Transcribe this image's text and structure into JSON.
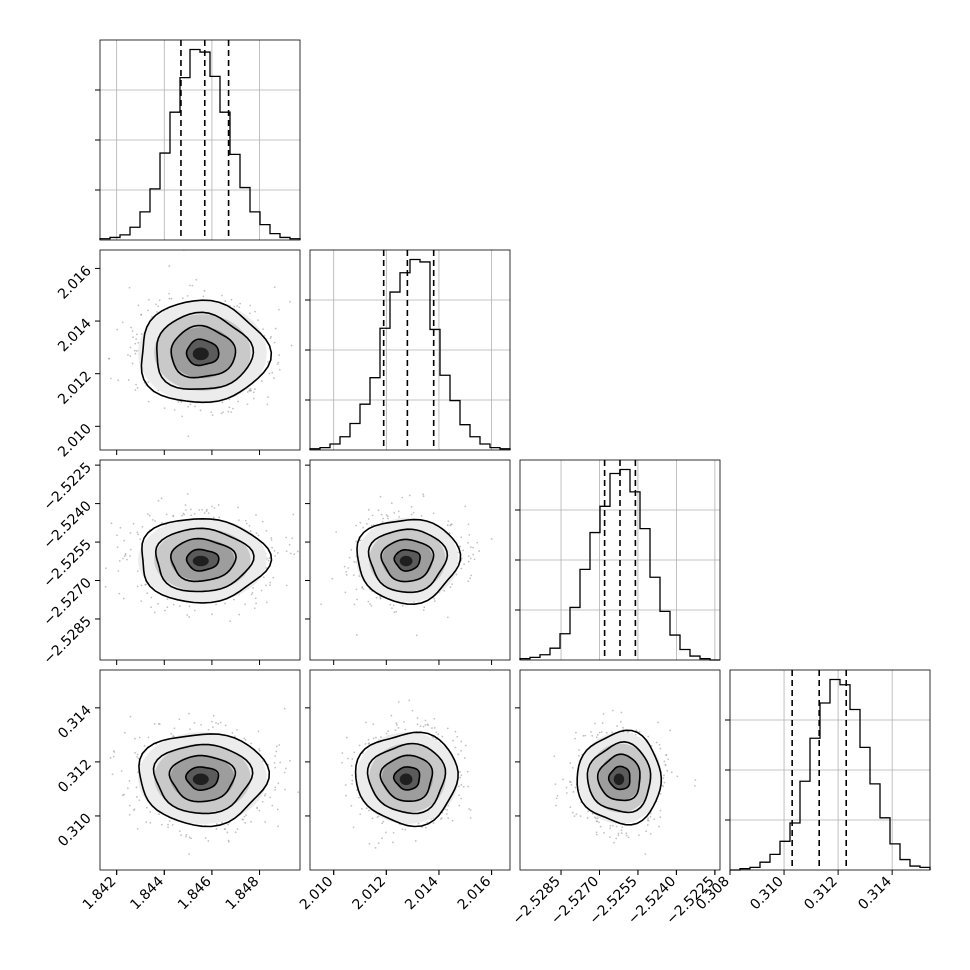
{
  "chart_data": {
    "type": "corner",
    "grid": true,
    "parameters": [
      {
        "range": [
          1.8413,
          1.8497
        ],
        "ticks": [
          1.842,
          1.844,
          1.846,
          1.848
        ],
        "tick_labels": [
          "1.842",
          "1.844",
          "1.846",
          "1.848"
        ],
        "quantiles": [
          1.8447,
          1.8457,
          1.8467
        ],
        "hist": {
          "edges_from": 1.8413,
          "edges_to": 1.8497,
          "counts": [
            1,
            2,
            4,
            10,
            22,
            40,
            68,
            100,
            127,
            149,
            147,
            128,
            100,
            67,
            41,
            22,
            12,
            5,
            2,
            1
          ]
        }
      },
      {
        "range": [
          2.0091,
          2.0167
        ],
        "ticks": [
          2.01,
          2.012,
          2.014,
          2.016
        ],
        "tick_labels": [
          "2.010",
          "2.012",
          "2.014",
          "2.016"
        ],
        "quantiles": [
          2.0119,
          2.0128,
          2.0138
        ],
        "hist": {
          "edges_from": 2.0091,
          "edges_to": 2.0167,
          "counts": [
            1,
            2,
            5,
            11,
            22,
            38,
            60,
            101,
            131,
            147,
            158,
            156,
            100,
            62,
            41,
            21,
            11,
            5,
            2,
            1
          ]
        }
      },
      {
        "range": [
          -2.5301,
          -2.5223
        ],
        "ticks": [
          -2.5285,
          -2.527,
          -2.5255,
          -2.524,
          -2.5225
        ],
        "tick_labels": [
          "−2.5285",
          "−2.5270",
          "−2.5255",
          "−2.5240",
          "−2.5225"
        ],
        "y_ticks": [
          -2.5225,
          -2.524,
          -2.5255,
          -2.527,
          -2.5285
        ],
        "quantiles": [
          -2.5268,
          -2.5262,
          -2.5256
        ],
        "hist": {
          "edges_from": -2.5301,
          "edges_to": -2.5223,
          "counts": [
            1,
            2,
            4,
            9,
            20,
            40,
            69,
            97,
            117,
            142,
            145,
            128,
            100,
            63,
            37,
            19,
            8,
            3,
            1,
            0
          ]
        }
      },
      {
        "range": [
          0.308,
          0.3154
        ],
        "ticks": [
          0.308,
          0.31,
          0.312,
          0.314
        ],
        "tick_labels": [
          "0.308",
          "0.310",
          "0.312",
          "0.314"
        ],
        "y_ticks": [
          0.31,
          0.312,
          0.314
        ],
        "y_tick_labels": [
          "0.310",
          "0.312",
          "0.314"
        ],
        "quantiles": [
          0.3103,
          0.3113,
          0.3123
        ],
        "hist": {
          "edges_from": 0.308,
          "edges_to": 0.3154,
          "counts": [
            0,
            1,
            2,
            6,
            12,
            22,
            36,
            68,
            101,
            128,
            146,
            142,
            123,
            94,
            66,
            40,
            20,
            8,
            3,
            2
          ]
        }
      }
    ],
    "pairs": [
      {
        "row": 1,
        "col": 0,
        "center": [
          1.8456,
          2.0128
        ],
        "sigma": [
          0.00135,
          0.00097
        ]
      },
      {
        "row": 2,
        "col": 0,
        "center": [
          1.8456,
          -2.5262
        ],
        "sigma": [
          0.00135,
          0.00082
        ]
      },
      {
        "row": 2,
        "col": 1,
        "center": [
          2.0128,
          -2.5262
        ],
        "sigma": [
          0.00097,
          0.00082
        ]
      },
      {
        "row": 3,
        "col": 0,
        "center": [
          1.8456,
          0.3114
        ],
        "sigma": [
          0.00135,
          0.00085
        ]
      },
      {
        "row": 3,
        "col": 1,
        "center": [
          2.0128,
          0.3114
        ],
        "sigma": [
          0.00097,
          0.00085
        ]
      },
      {
        "row": 3,
        "col": 2,
        "center": [
          -2.5262,
          0.3114
        ],
        "sigma": [
          0.00082,
          0.00085
        ]
      }
    ],
    "contour_levels_sigma": [
      0.5,
      1.0,
      1.5,
      2.0
    ]
  },
  "colors": {
    "line": "#000000",
    "grid": "#b0b0b0",
    "scatter": "#9a9a9a",
    "density_dark": "#1f1f1f",
    "panel_edge": "#000000"
  }
}
